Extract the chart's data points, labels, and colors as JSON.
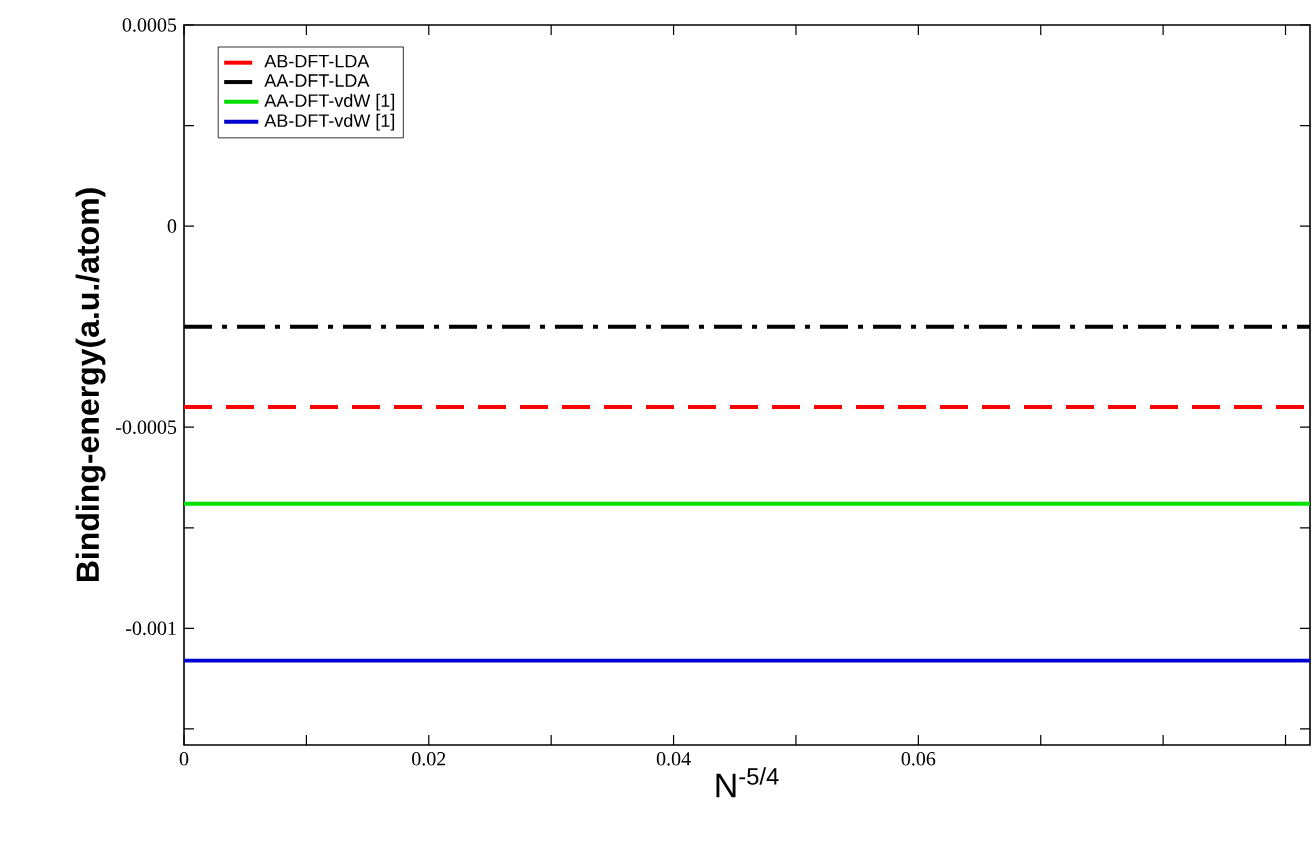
{
  "chart_data": {
    "type": "line",
    "xlabel": "N$^{-5/4}$",
    "ylabel": "Binding-energy(a.u./atom)",
    "x": [
      0,
      0.092
    ],
    "series": [
      {
        "name": "AB-DFT-LDA",
        "color": "#ff0000",
        "values": [
          -0.00045,
          -0.00045
        ],
        "line_style": "dashed"
      },
      {
        "name": "AA-DFT-LDA",
        "color": "#000000",
        "values": [
          -0.00025,
          -0.00025
        ],
        "line_style": "dashdot"
      },
      {
        "name": "AA-DFT-vdW [1]",
        "color": "#00e000",
        "values": [
          -0.00069,
          -0.00069
        ],
        "line_style": "solid"
      },
      {
        "name": "AB-DFT-vdW [1]",
        "color": "#0000d0",
        "values": [
          -0.00108,
          -0.00108
        ],
        "line_style": "solid"
      }
    ],
    "xlim": [
      0,
      0.092
    ],
    "ylim": [
      -0.00129,
      0.0005
    ],
    "xticks": [
      0,
      {
        "value": 0.01,
        "label": null
      },
      0.02,
      {
        "value": 0.03,
        "label": null
      },
      0.04,
      {
        "value": 0.05,
        "label": null
      },
      0.06,
      {
        "value": 0.07,
        "label": null
      },
      {
        "value": 0.08,
        "label": null
      },
      {
        "value": 0.09,
        "label": null
      }
    ],
    "yticks": [
      {
        "value": -0.00125,
        "label": null
      },
      -0.001,
      {
        "value": -0.00075,
        "label": null
      },
      -0.0005,
      {
        "value": -0.00025,
        "label": null
      },
      0,
      {
        "value": 0.00025,
        "label": null
      },
      0.0005
    ],
    "legend": "top left",
    "grid": false,
    "marker": "none"
  }
}
